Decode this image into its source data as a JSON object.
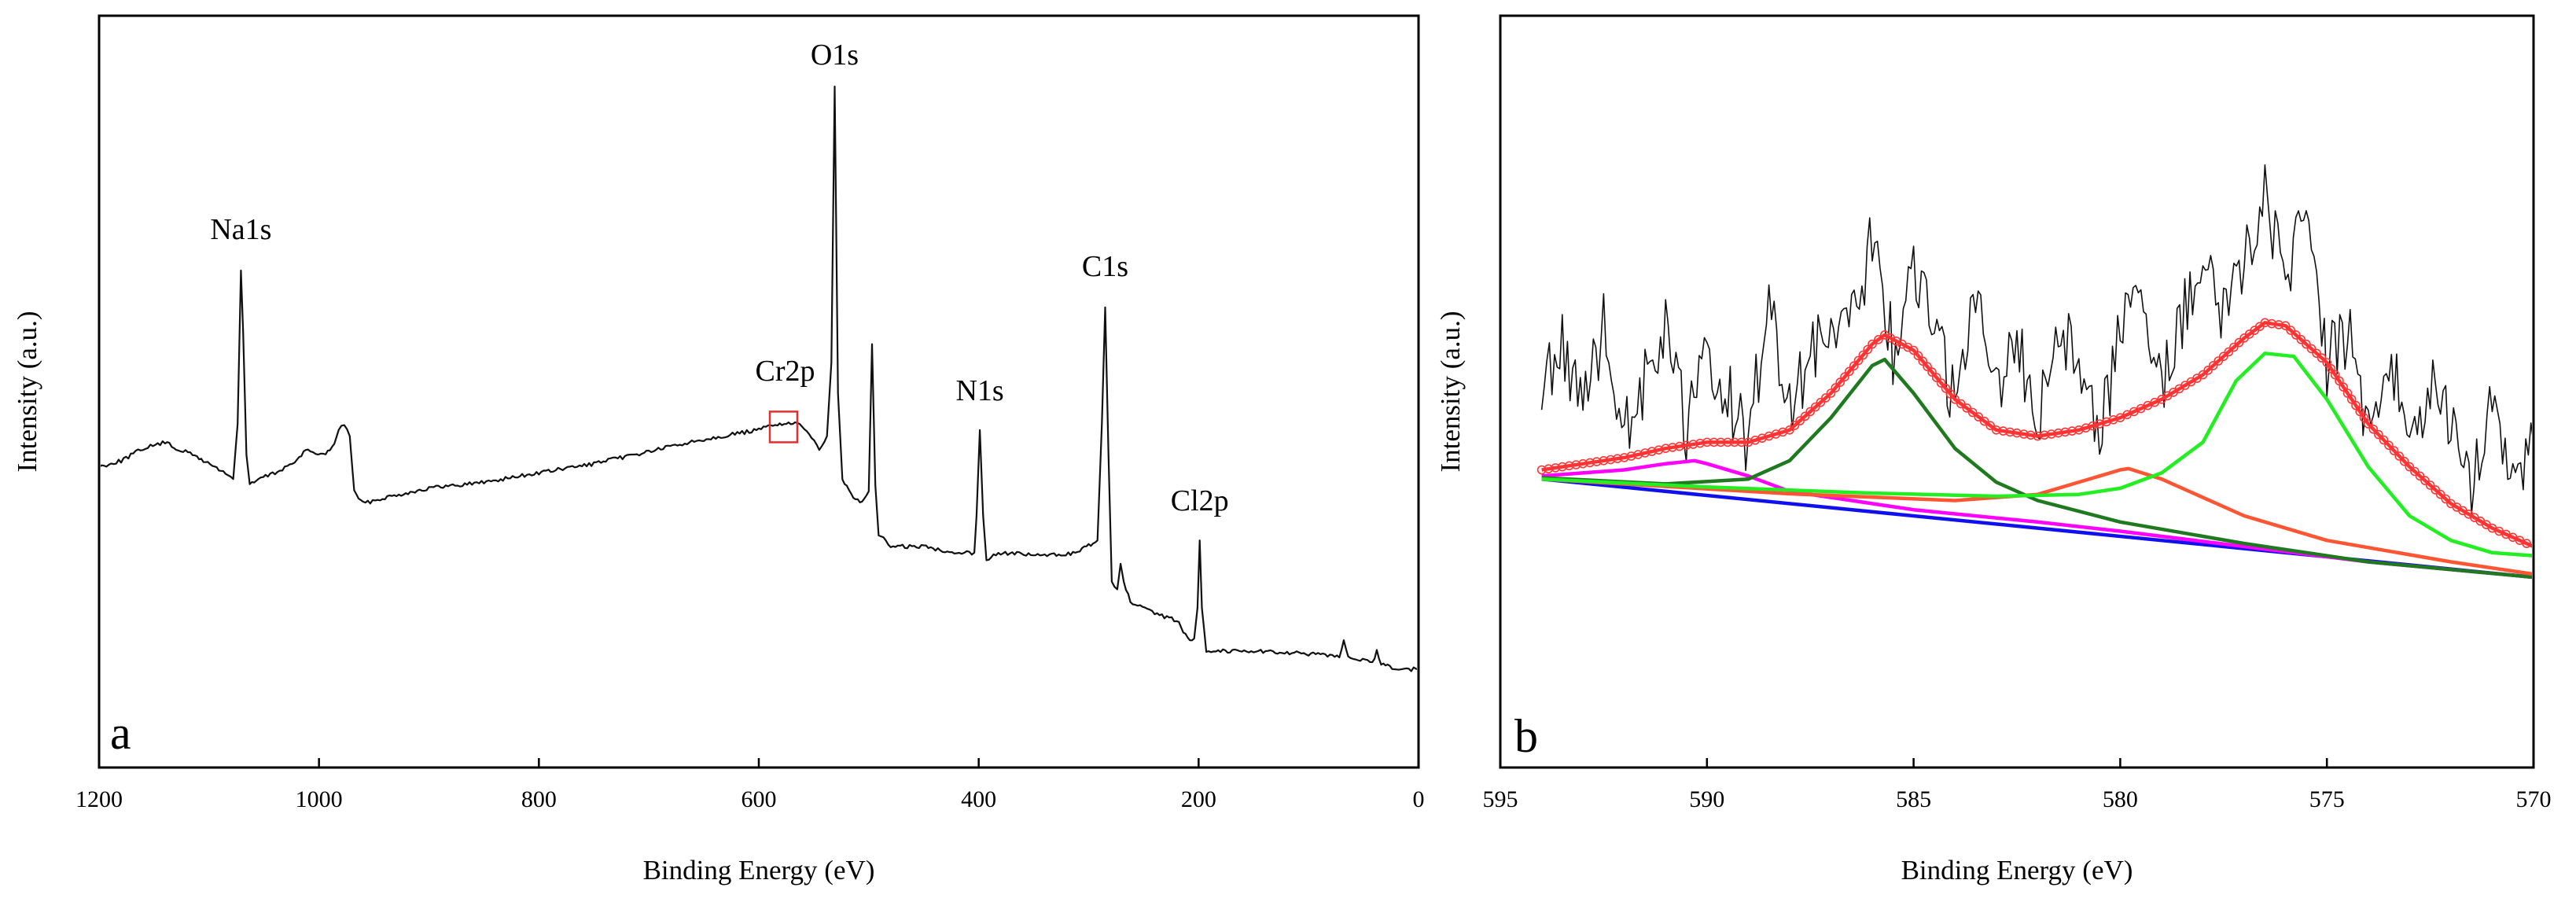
{
  "figure": {
    "panel_a_letter": "a",
    "panel_b_letter": "b"
  },
  "chart_data": [
    {
      "type": "line",
      "panel": "a",
      "title": "",
      "xlabel": "Binding Energy (eV)",
      "ylabel": "Intensity (a.u.)",
      "xlim": [
        1200,
        0
      ],
      "x_reversed": true,
      "ylim": [
        0,
        1
      ],
      "xticks": [
        1200,
        1000,
        800,
        600,
        400,
        200,
        0
      ],
      "tick_labels": [
        "1200",
        "1000",
        "800",
        "600",
        "400",
        "200",
        "0"
      ],
      "y_ticks_shown": false,
      "series": [
        {
          "name": "XPS survey spectrum",
          "color": "#111111",
          "points": [
            [
              1200,
              0.38
            ],
            [
              1180,
              0.39
            ],
            [
              1160,
              0.41
            ],
            [
              1140,
              0.42
            ],
            [
              1130,
              0.41
            ],
            [
              1115,
              0.4
            ],
            [
              1105,
              0.39
            ],
            [
              1095,
              0.38
            ],
            [
              1085,
              0.37
            ],
            [
              1078,
              0.36
            ],
            [
              1074,
              0.45
            ],
            [
              1071,
              0.7
            ],
            [
              1069,
              0.6
            ],
            [
              1066,
              0.4
            ],
            [
              1063,
              0.35
            ],
            [
              1055,
              0.36
            ],
            [
              1040,
              0.37
            ],
            [
              1020,
              0.39
            ],
            [
              1010,
              0.41
            ],
            [
              1003,
              0.4
            ],
            [
              996,
              0.4
            ],
            [
              988,
              0.41
            ],
            [
              982,
              0.44
            ],
            [
              977,
              0.45
            ],
            [
              972,
              0.43
            ],
            [
              968,
              0.34
            ],
            [
              960,
              0.32
            ],
            [
              940,
              0.33
            ],
            [
              900,
              0.345
            ],
            [
              850,
              0.355
            ],
            [
              800,
              0.37
            ],
            [
              750,
              0.385
            ],
            [
              700,
              0.405
            ],
            [
              650,
              0.425
            ],
            [
              600,
              0.44
            ],
            [
              585,
              0.45
            ],
            [
              575,
              0.45
            ],
            [
              565,
              0.45
            ],
            [
              552,
              0.43
            ],
            [
              545,
              0.41
            ],
            [
              538,
              0.43
            ],
            [
              534,
              0.55
            ],
            [
              531,
              1.0
            ],
            [
              528,
              0.5
            ],
            [
              524,
              0.36
            ],
            [
              518,
              0.34
            ],
            [
              508,
              0.32
            ],
            [
              500,
              0.34
            ],
            [
              497,
              0.58
            ],
            [
              494,
              0.35
            ],
            [
              491,
              0.27
            ],
            [
              480,
              0.25
            ],
            [
              450,
              0.25
            ],
            [
              420,
              0.24
            ],
            [
              404,
              0.24
            ],
            [
              402,
              0.3
            ],
            [
              399,
              0.44
            ],
            [
              396,
              0.3
            ],
            [
              393,
              0.23
            ],
            [
              380,
              0.24
            ],
            [
              340,
              0.235
            ],
            [
              310,
              0.24
            ],
            [
              302,
              0.25
            ],
            [
              292,
              0.26
            ],
            [
              288,
              0.45
            ],
            [
              285,
              0.64
            ],
            [
              282,
              0.4
            ],
            [
              279,
              0.19
            ],
            [
              274,
              0.18
            ],
            [
              271,
              0.22
            ],
            [
              268,
              0.19
            ],
            [
              262,
              0.16
            ],
            [
              240,
              0.14
            ],
            [
              220,
              0.13
            ],
            [
              210,
              0.1
            ],
            [
              204,
              0.1
            ],
            [
              201,
              0.15
            ],
            [
              199,
              0.26
            ],
            [
              197,
              0.15
            ],
            [
              193,
              0.08
            ],
            [
              150,
              0.08
            ],
            [
              100,
              0.075
            ],
            [
              72,
              0.07
            ],
            [
              68,
              0.1
            ],
            [
              64,
              0.07
            ],
            [
              42,
              0.06
            ],
            [
              38,
              0.08
            ],
            [
              34,
              0.06
            ],
            [
              20,
              0.05
            ],
            [
              0,
              0.05
            ]
          ]
        }
      ],
      "annotations": [
        {
          "text": "Na1s",
          "x": 1071,
          "y": 0.7
        },
        {
          "text": "O1s",
          "x": 531,
          "y": 1.0
        },
        {
          "text": "Cr2p",
          "x": 576,
          "y": 0.45
        },
        {
          "text": "N1s",
          "x": 399,
          "y": 0.44
        },
        {
          "text": "C1s",
          "x": 285,
          "y": 0.64
        },
        {
          "text": "Cl2p",
          "x": 199,
          "y": 0.26
        }
      ],
      "highlight_box": {
        "x_range": [
          590,
          565
        ],
        "y_range": [
          0.42,
          0.47
        ],
        "color": "#e03030",
        "note": "Cr2p region"
      }
    },
    {
      "type": "line",
      "panel": "b",
      "title": "",
      "xlabel": "Binding Energy (eV)",
      "ylabel": "Intensity (a.u.)",
      "xlim": [
        595,
        570
      ],
      "x_reversed": true,
      "ylim": [
        0,
        1
      ],
      "xticks": [
        595,
        590,
        585,
        580,
        575,
        570
      ],
      "tick_labels": [
        "595",
        "590",
        "585",
        "580",
        "575",
        "570"
      ],
      "y_ticks_shown": false,
      "series": [
        {
          "name": "raw data",
          "color": "#111111",
          "style": "noisy",
          "points": [
            [
              594,
              0.5
            ],
            [
              593.5,
              0.58
            ],
            [
              593,
              0.48
            ],
            [
              592.5,
              0.61
            ],
            [
              592,
              0.45
            ],
            [
              591.5,
              0.52
            ],
            [
              591,
              0.6
            ],
            [
              590.5,
              0.44
            ],
            [
              590,
              0.56
            ],
            [
              589.5,
              0.5
            ],
            [
              589,
              0.42
            ],
            [
              588.5,
              0.66
            ],
            [
              588,
              0.48
            ],
            [
              587.5,
              0.55
            ],
            [
              587,
              0.63
            ],
            [
              586.5,
              0.61
            ],
            [
              586,
              0.75
            ],
            [
              585.5,
              0.57
            ],
            [
              585,
              0.7
            ],
            [
              584.5,
              0.6
            ],
            [
              584,
              0.49
            ],
            [
              583.5,
              0.67
            ],
            [
              583,
              0.52
            ],
            [
              582.5,
              0.58
            ],
            [
              582,
              0.46
            ],
            [
              581.5,
              0.62
            ],
            [
              581,
              0.55
            ],
            [
              580.5,
              0.44
            ],
            [
              580,
              0.6
            ],
            [
              579.5,
              0.66
            ],
            [
              579,
              0.5
            ],
            [
              578.5,
              0.62
            ],
            [
              578,
              0.7
            ],
            [
              577.5,
              0.64
            ],
            [
              577,
              0.72
            ],
            [
              576.5,
              0.82
            ],
            [
              576,
              0.7
            ],
            [
              575.5,
              0.78
            ],
            [
              575,
              0.55
            ],
            [
              574.5,
              0.6
            ],
            [
              574,
              0.43
            ],
            [
              573.5,
              0.57
            ],
            [
              573,
              0.4
            ],
            [
              572.5,
              0.52
            ],
            [
              572,
              0.46
            ],
            [
              571.5,
              0.35
            ],
            [
              571,
              0.5
            ],
            [
              570.5,
              0.38
            ],
            [
              570,
              0.42
            ]
          ]
        },
        {
          "name": "envelope fit",
          "color": "#ff3333",
          "marker": "circle",
          "points": [
            [
              594,
              0.375
            ],
            [
              593,
              0.385
            ],
            [
              592,
              0.395
            ],
            [
              591,
              0.41
            ],
            [
              590,
              0.42
            ],
            [
              589,
              0.42
            ],
            [
              588,
              0.44
            ],
            [
              587,
              0.5
            ],
            [
              586,
              0.58
            ],
            [
              585.7,
              0.595
            ],
            [
              585,
              0.57
            ],
            [
              584,
              0.49
            ],
            [
              583,
              0.44
            ],
            [
              582,
              0.43
            ],
            [
              581,
              0.44
            ],
            [
              580,
              0.46
            ],
            [
              579,
              0.49
            ],
            [
              578,
              0.53
            ],
            [
              577,
              0.59
            ],
            [
              576.5,
              0.615
            ],
            [
              576,
              0.61
            ],
            [
              575,
              0.55
            ],
            [
              574,
              0.45
            ],
            [
              573,
              0.38
            ],
            [
              572,
              0.32
            ],
            [
              571,
              0.28
            ],
            [
              570,
              0.25
            ]
          ]
        },
        {
          "name": "baseline",
          "color": "#1010ee",
          "points": [
            [
              594,
              0.36
            ],
            [
              570,
              0.2
            ]
          ]
        },
        {
          "name": "peak 590 eV",
          "color": "#ff00ff",
          "points": [
            [
              594,
              0.365
            ],
            [
              593,
              0.37
            ],
            [
              592,
              0.375
            ],
            [
              591,
              0.385
            ],
            [
              590.3,
              0.39
            ],
            [
              590,
              0.385
            ],
            [
              589,
              0.365
            ],
            [
              588,
              0.34
            ],
            [
              587,
              0.33
            ],
            [
              585,
              0.31
            ],
            [
              582,
              0.29
            ],
            [
              580,
              0.275
            ],
            [
              577,
              0.25
            ],
            [
              574,
              0.225
            ],
            [
              570,
              0.2
            ]
          ]
        },
        {
          "name": "peak 585.7 eV",
          "color": "#1f7a1f",
          "points": [
            [
              594,
              0.362
            ],
            [
              591,
              0.352
            ],
            [
              589,
              0.36
            ],
            [
              588,
              0.39
            ],
            [
              587,
              0.46
            ],
            [
              586,
              0.545
            ],
            [
              585.7,
              0.555
            ],
            [
              585,
              0.5
            ],
            [
              584,
              0.41
            ],
            [
              583,
              0.355
            ],
            [
              582,
              0.325
            ],
            [
              580,
              0.29
            ],
            [
              577,
              0.255
            ],
            [
              574,
              0.225
            ],
            [
              570,
              0.2
            ]
          ]
        },
        {
          "name": "peak 579.8 eV",
          "color": "#ff5533",
          "points": [
            [
              594,
              0.36
            ],
            [
              588,
              0.336
            ],
            [
              584,
              0.325
            ],
            [
              582,
              0.335
            ],
            [
              581,
              0.355
            ],
            [
              580,
              0.375
            ],
            [
              579.8,
              0.377
            ],
            [
              579,
              0.36
            ],
            [
              578,
              0.33
            ],
            [
              577,
              0.3
            ],
            [
              575,
              0.26
            ],
            [
              572,
              0.225
            ],
            [
              570,
              0.205
            ]
          ]
        },
        {
          "name": "peak 576.5 eV",
          "color": "#22ee22",
          "points": [
            [
              594,
              0.36
            ],
            [
              590,
              0.347
            ],
            [
              586,
              0.337
            ],
            [
              583,
              0.332
            ],
            [
              581,
              0.335
            ],
            [
              580,
              0.345
            ],
            [
              579,
              0.37
            ],
            [
              578,
              0.42
            ],
            [
              577.2,
              0.52
            ],
            [
              576.5,
              0.565
            ],
            [
              575.8,
              0.56
            ],
            [
              575,
              0.49
            ],
            [
              574,
              0.38
            ],
            [
              573,
              0.3
            ],
            [
              572,
              0.26
            ],
            [
              571,
              0.24
            ],
            [
              570,
              0.235
            ]
          ]
        }
      ]
    }
  ]
}
